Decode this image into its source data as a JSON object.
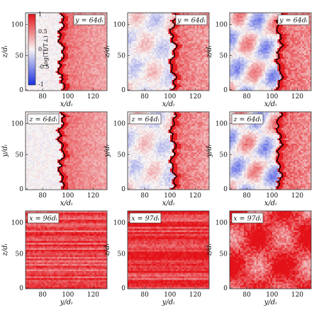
{
  "colors": {
    "positive": "#e8141c",
    "negative": "#2c3fd8",
    "neutral": "#f6f2f2",
    "front_line": "#000000"
  },
  "colorbar": {
    "label": "log(T∥/T⊥)",
    "ticks": [
      "1",
      "0.5",
      "0",
      "-0.5",
      "-1"
    ],
    "range": [
      -1,
      1
    ]
  },
  "rows": [
    {
      "ylabel": "z/dᵢ",
      "xlabel": "x/dᵢ",
      "yticks": [
        "100",
        "50",
        "0"
      ],
      "xticks": [
        "80",
        "100",
        "120"
      ],
      "panels": [
        {
          "label": "y = 64dᵢ",
          "front": 0.43,
          "mean": 0.25,
          "noise": 0.25,
          "blob": 0.0
        },
        {
          "label": "y = 64dᵢ",
          "front": 0.55,
          "mean": 0.25,
          "noise": 0.35,
          "blob": 0.25
        },
        {
          "label": "y = 64dᵢ",
          "front": 0.6,
          "mean": 0.28,
          "noise": 0.4,
          "blob": 0.55
        }
      ]
    },
    {
      "ylabel": "y/dᵢ",
      "xlabel": "x/dᵢ",
      "yticks": [
        "100",
        "50",
        "0"
      ],
      "xticks": [
        "80",
        "100",
        "120"
      ],
      "panels": [
        {
          "label": "z = 64dᵢ",
          "front": 0.43,
          "mean": 0.25,
          "noise": 0.25,
          "blob": 0.0
        },
        {
          "label": "z = 64dᵢ",
          "front": 0.55,
          "mean": 0.25,
          "noise": 0.35,
          "blob": 0.25
        },
        {
          "label": "z = 64dᵢ",
          "front": 0.6,
          "mean": 0.28,
          "noise": 0.4,
          "blob": 0.55
        }
      ]
    },
    {
      "ylabel": "z/dᵢ",
      "xlabel": "y/dᵢ",
      "yticks": [
        "100",
        "50",
        "0"
      ],
      "xticks": [
        "80",
        "100",
        "120"
      ],
      "panels": [
        {
          "label": "x = 96dᵢ",
          "mode": "streaks",
          "mean": 0.75,
          "noise": 0.25
        },
        {
          "label": "x = 97dᵢ",
          "mode": "streaks",
          "mean": 0.8,
          "noise": 0.25
        },
        {
          "label": "x = 97dᵢ",
          "mode": "patchy",
          "mean": 0.8,
          "noise": 0.45
        }
      ]
    }
  ]
}
